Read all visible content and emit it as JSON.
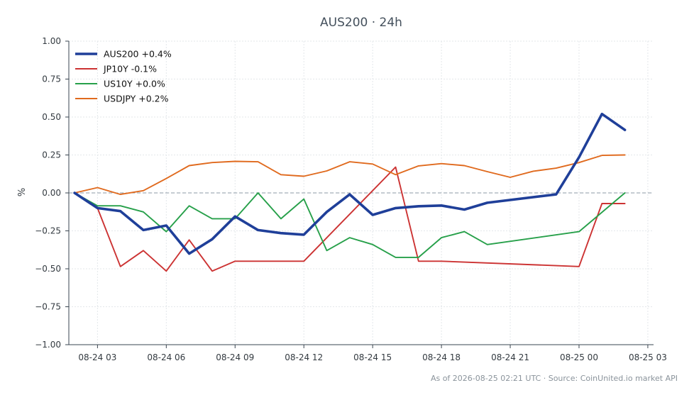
{
  "chart_data": {
    "type": "line",
    "title": "AUS200 · 24h",
    "xlabel": "",
    "ylabel": "%",
    "ylim": [
      -1.0,
      1.0
    ],
    "xlim": [
      "2026-08-24 01:45",
      "2026-08-25 03:15"
    ],
    "x_ticks": [
      "08-24 03",
      "08-24 06",
      "08-24 09",
      "08-24 12",
      "08-24 15",
      "08-24 18",
      "08-24 21",
      "08-25 00",
      "08-25 03"
    ],
    "y_ticks": [
      "1.00",
      "0.75",
      "0.50",
      "0.25",
      "0.00",
      "−0.25",
      "−0.50",
      "−0.75",
      "−1.00"
    ],
    "grid": true,
    "zero_line": true,
    "legend_position": "top-left",
    "series": [
      {
        "name": "AUS200 +0.4%",
        "color": "#1f3f99",
        "emphasis": true,
        "points": [
          [
            "2026-08-24 02:00",
            0.0
          ],
          [
            "2026-08-24 03:00",
            -0.1
          ],
          [
            "2026-08-24 04:00",
            -0.12
          ],
          [
            "2026-08-24 05:00",
            -0.245
          ],
          [
            "2026-08-24 06:00",
            -0.215
          ],
          [
            "2026-08-24 07:00",
            -0.4
          ],
          [
            "2026-08-24 08:00",
            -0.305
          ],
          [
            "2026-08-24 09:00",
            -0.155
          ],
          [
            "2026-08-24 10:00",
            -0.245
          ],
          [
            "2026-08-24 11:00",
            -0.265
          ],
          [
            "2026-08-24 12:00",
            -0.275
          ],
          [
            "2026-08-24 13:00",
            -0.125
          ],
          [
            "2026-08-24 14:00",
            -0.01
          ],
          [
            "2026-08-24 15:00",
            -0.145
          ],
          [
            "2026-08-24 16:00",
            -0.1
          ],
          [
            "2026-08-24 17:00",
            -0.088
          ],
          [
            "2026-08-24 18:00",
            -0.083
          ],
          [
            "2026-08-24 19:00",
            -0.11
          ],
          [
            "2026-08-24 20:00",
            -0.065
          ],
          [
            "2026-08-24 23:00",
            -0.01
          ],
          [
            "2026-08-25 00:00",
            0.235
          ],
          [
            "2026-08-25 01:00",
            0.52
          ],
          [
            "2026-08-25 02:00",
            0.415
          ]
        ]
      },
      {
        "name": "JP10Y -0.1%",
        "color": "#cc3333",
        "emphasis": false,
        "points": [
          [
            "2026-08-24 02:00",
            0.0
          ],
          [
            "2026-08-24 03:00",
            -0.1
          ],
          [
            "2026-08-24 04:00",
            -0.485
          ],
          [
            "2026-08-24 05:00",
            -0.38
          ],
          [
            "2026-08-24 06:00",
            -0.515
          ],
          [
            "2026-08-24 07:00",
            -0.31
          ],
          [
            "2026-08-24 08:00",
            -0.515
          ],
          [
            "2026-08-24 09:00",
            -0.45
          ],
          [
            "2026-08-24 12:00",
            -0.45
          ],
          [
            "2026-08-24 16:00",
            0.17
          ],
          [
            "2026-08-24 17:00",
            -0.45
          ],
          [
            "2026-08-24 18:00",
            -0.45
          ],
          [
            "2026-08-25 00:00",
            -0.485
          ],
          [
            "2026-08-25 01:00",
            -0.07
          ],
          [
            "2026-08-25 02:00",
            -0.07
          ]
        ]
      },
      {
        "name": "US10Y +0.0%",
        "color": "#27a04a",
        "emphasis": false,
        "points": [
          [
            "2026-08-24 02:00",
            0.0
          ],
          [
            "2026-08-24 03:00",
            -0.085
          ],
          [
            "2026-08-24 04:00",
            -0.085
          ],
          [
            "2026-08-24 05:00",
            -0.125
          ],
          [
            "2026-08-24 06:00",
            -0.255
          ],
          [
            "2026-08-24 07:00",
            -0.085
          ],
          [
            "2026-08-24 08:00",
            -0.17
          ],
          [
            "2026-08-24 09:00",
            -0.17
          ],
          [
            "2026-08-24 10:00",
            0.0
          ],
          [
            "2026-08-24 11:00",
            -0.17
          ],
          [
            "2026-08-24 12:00",
            -0.04
          ],
          [
            "2026-08-24 13:00",
            -0.38
          ],
          [
            "2026-08-24 14:00",
            -0.295
          ],
          [
            "2026-08-24 15:00",
            -0.34
          ],
          [
            "2026-08-24 16:00",
            -0.425
          ],
          [
            "2026-08-24 17:00",
            -0.425
          ],
          [
            "2026-08-24 18:00",
            -0.295
          ],
          [
            "2026-08-24 19:00",
            -0.255
          ],
          [
            "2026-08-24 20:00",
            -0.34
          ],
          [
            "2026-08-25 00:00",
            -0.255
          ],
          [
            "2026-08-25 02:00",
            0.0
          ]
        ]
      },
      {
        "name": "USDJPY +0.2%",
        "color": "#e06a1e",
        "emphasis": false,
        "points": [
          [
            "2026-08-24 02:00",
            0.0
          ],
          [
            "2026-08-24 03:00",
            0.035
          ],
          [
            "2026-08-24 04:00",
            -0.01
          ],
          [
            "2026-08-24 05:00",
            0.015
          ],
          [
            "2026-08-24 06:00",
            0.095
          ],
          [
            "2026-08-24 07:00",
            0.18
          ],
          [
            "2026-08-24 08:00",
            0.2
          ],
          [
            "2026-08-24 09:00",
            0.208
          ],
          [
            "2026-08-24 10:00",
            0.205
          ],
          [
            "2026-08-24 11:00",
            0.12
          ],
          [
            "2026-08-24 12:00",
            0.11
          ],
          [
            "2026-08-24 13:00",
            0.145
          ],
          [
            "2026-08-24 14:00",
            0.205
          ],
          [
            "2026-08-24 15:00",
            0.19
          ],
          [
            "2026-08-24 16:00",
            0.12
          ],
          [
            "2026-08-24 17:00",
            0.178
          ],
          [
            "2026-08-24 18:00",
            0.193
          ],
          [
            "2026-08-24 19:00",
            0.18
          ],
          [
            "2026-08-24 20:00",
            0.14
          ],
          [
            "2026-08-24 21:00",
            0.103
          ],
          [
            "2026-08-24 22:00",
            0.143
          ],
          [
            "2026-08-24 23:00",
            0.163
          ],
          [
            "2026-08-25 00:00",
            0.2
          ],
          [
            "2026-08-25 01:00",
            0.247
          ],
          [
            "2026-08-25 02:00",
            0.25
          ]
        ]
      }
    ],
    "footer": "As of 2026-08-25 02:21 UTC · Source: CoinUnited.io market API"
  }
}
